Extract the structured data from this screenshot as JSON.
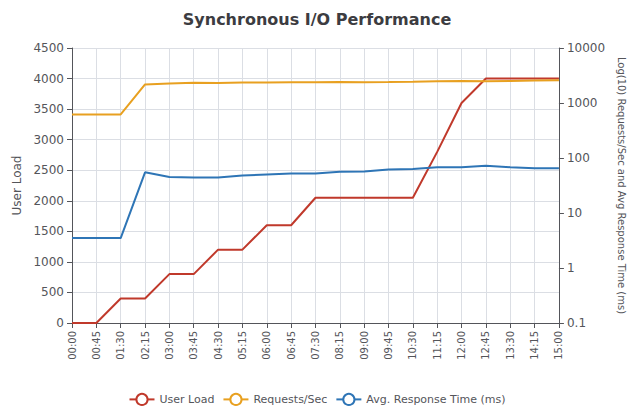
{
  "chart_data": {
    "type": "line",
    "title": "Synchronous I/O Performance",
    "ylabel": "User Load",
    "y2label": "Log(10) Requests/Sec and Avg Response Time (ms)",
    "x": [
      0,
      0.75,
      1.5,
      2.25,
      3.0,
      3.75,
      4.5,
      5.25,
      6.0,
      6.75,
      7.5,
      8.25,
      9.0,
      9.75,
      10.5,
      11.25,
      12.0,
      12.75,
      13.5,
      14.25,
      15.0
    ],
    "xlim": [
      0,
      15
    ],
    "xticks": [
      {
        "value": 0,
        "label": "00:00"
      },
      {
        "value": 0.75,
        "label": "00:45"
      },
      {
        "value": 1.5,
        "label": "01:30"
      },
      {
        "value": 2.25,
        "label": "02:15"
      },
      {
        "value": 3.0,
        "label": "03:00"
      },
      {
        "value": 3.75,
        "label": "03:45"
      },
      {
        "value": 4.5,
        "label": "04:30"
      },
      {
        "value": 5.25,
        "label": "05:15"
      },
      {
        "value": 6.0,
        "label": "06:00"
      },
      {
        "value": 6.75,
        "label": "06:45"
      },
      {
        "value": 7.5,
        "label": "07:30"
      },
      {
        "value": 8.25,
        "label": "08:15"
      },
      {
        "value": 9.0,
        "label": "09:00"
      },
      {
        "value": 9.75,
        "label": "09:45"
      },
      {
        "value": 10.5,
        "label": "10:30"
      },
      {
        "value": 11.25,
        "label": "11:15"
      },
      {
        "value": 12.0,
        "label": "12:00"
      },
      {
        "value": 12.75,
        "label": "12:45"
      },
      {
        "value": 13.5,
        "label": "13:30"
      },
      {
        "value": 14.25,
        "label": "14:15"
      },
      {
        "value": 15.0,
        "label": "15:00"
      }
    ],
    "ylim": [
      0,
      4500
    ],
    "yticks": [
      0,
      500,
      1000,
      1500,
      2000,
      2500,
      3000,
      3500,
      4000,
      4500
    ],
    "y2lim": [
      0.1,
      10000
    ],
    "y2ticks": [
      0.1,
      1,
      10,
      100,
      1000,
      10000
    ],
    "log": "y2",
    "grid": true,
    "legend": "bottom",
    "series": [
      {
        "name": "User Load",
        "color": "#c0392b",
        "values": [
          0,
          0,
          400,
          400,
          800,
          800,
          1200,
          1200,
          1600,
          1600,
          2050,
          2050,
          2050,
          2050,
          2050,
          2800,
          3600,
          4000,
          4000,
          4000,
          4000
        ]
      },
      {
        "name": "Requests/Sec",
        "color": "#e8a020",
        "axis": "y2",
        "values": [
          620,
          620,
          620,
          2180,
          2260,
          2340,
          2300,
          2350,
          2360,
          2380,
          2390,
          2410,
          2380,
          2400,
          2430,
          2480,
          2500,
          2480,
          2520,
          2560,
          2590
        ]
      },
      {
        "name": "Avg. Response Time (ms)",
        "color": "#2e75b6",
        "axis": "y2",
        "values": [
          3.5,
          3.5,
          3.5,
          55,
          45,
          44,
          44,
          48,
          50,
          52,
          52,
          56,
          57,
          62,
          63,
          68,
          68,
          72,
          68,
          65,
          65
        ]
      }
    ]
  }
}
